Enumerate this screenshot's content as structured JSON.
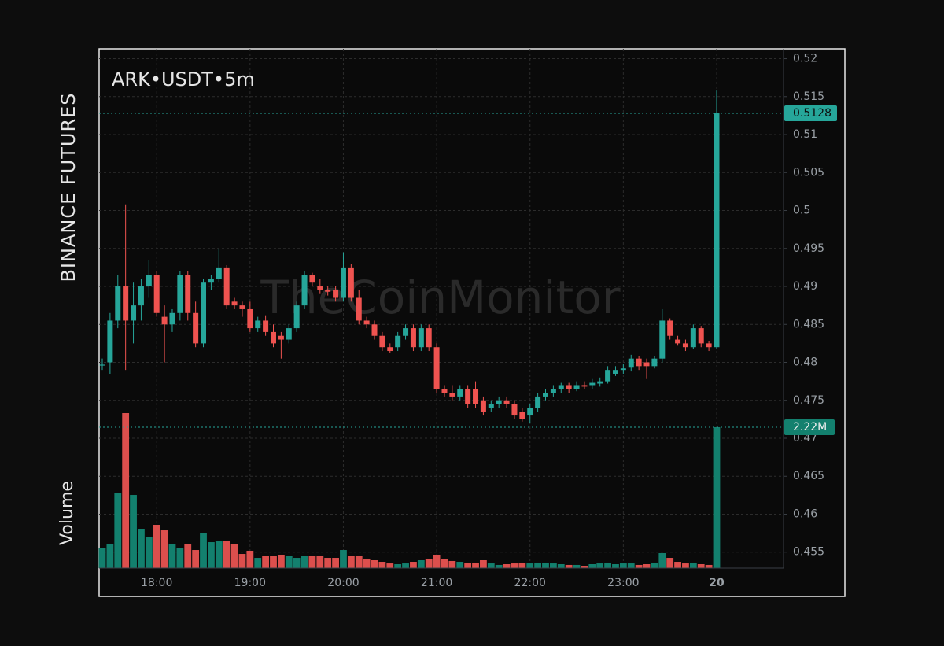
{
  "chart_data": {
    "type": "candlestick",
    "title": "ARK•USDT•5m",
    "exchange": "BINANCE FUTURES",
    "volume_title": "Volume",
    "watermark": "TheCoinMonitor",
    "up_color": "#26a69a",
    "down_color": "#ef5350",
    "volume_up_color": "#13806e",
    "volume_down_color": "#dc4f4d",
    "grid": true,
    "categories": [
      null,
      null,
      null,
      null,
      null,
      null,
      null,
      "18:00",
      null,
      null,
      null,
      null,
      null,
      null,
      null,
      null,
      null,
      null,
      null,
      "19:00",
      null,
      null,
      null,
      null,
      null,
      null,
      null,
      null,
      null,
      null,
      null,
      "20:00",
      null,
      null,
      null,
      null,
      null,
      null,
      null,
      null,
      null,
      null,
      null,
      "21:00",
      null,
      null,
      null,
      null,
      null,
      null,
      null,
      null,
      null,
      null,
      null,
      "22:00",
      null,
      null,
      null,
      null,
      null,
      null,
      null,
      null,
      null,
      null,
      null,
      "23:00",
      null,
      null,
      null,
      null,
      null,
      null,
      null,
      null,
      null,
      null,
      null,
      "20"
    ],
    "candles": [
      [
        0.4797,
        0.4805,
        0.479,
        0.4797
      ],
      [
        0.48,
        0.4865,
        0.4785,
        0.4855
      ],
      [
        0.4855,
        0.4915,
        0.4845,
        0.49
      ],
      [
        0.49,
        0.5008,
        0.479,
        0.4855
      ],
      [
        0.4855,
        0.4905,
        0.4825,
        0.4875
      ],
      [
        0.4875,
        0.491,
        0.4855,
        0.49
      ],
      [
        0.49,
        0.4935,
        0.4885,
        0.4915
      ],
      [
        0.4915,
        0.492,
        0.486,
        0.4865
      ],
      [
        0.486,
        0.4875,
        0.48,
        0.485
      ],
      [
        0.485,
        0.487,
        0.484,
        0.4865
      ],
      [
        0.4865,
        0.492,
        0.4855,
        0.4915
      ],
      [
        0.4915,
        0.492,
        0.4855,
        0.4865
      ],
      [
        0.4865,
        0.488,
        0.482,
        0.4825
      ],
      [
        0.4825,
        0.491,
        0.482,
        0.4905
      ],
      [
        0.4905,
        0.4915,
        0.4895,
        0.491
      ],
      [
        0.491,
        0.495,
        0.4905,
        0.4925
      ],
      [
        0.4925,
        0.4928,
        0.487,
        0.4875
      ],
      [
        0.488,
        0.4885,
        0.487,
        0.4875
      ],
      [
        0.4875,
        0.488,
        0.486,
        0.487
      ],
      [
        0.487,
        0.488,
        0.484,
        0.4845
      ],
      [
        0.4845,
        0.486,
        0.484,
        0.4855
      ],
      [
        0.4855,
        0.4862,
        0.4835,
        0.484
      ],
      [
        0.484,
        0.485,
        0.482,
        0.4825
      ],
      [
        0.4835,
        0.484,
        0.4805,
        0.483
      ],
      [
        0.483,
        0.485,
        0.4825,
        0.4845
      ],
      [
        0.4845,
        0.488,
        0.484,
        0.4875
      ],
      [
        0.4875,
        0.492,
        0.487,
        0.4915
      ],
      [
        0.4915,
        0.4918,
        0.49,
        0.4905
      ],
      [
        0.49,
        0.491,
        0.489,
        0.4895
      ],
      [
        0.4895,
        0.49,
        0.4888,
        0.4893
      ],
      [
        0.4895,
        0.49,
        0.488,
        0.4885
      ],
      [
        0.4885,
        0.4945,
        0.488,
        0.4925
      ],
      [
        0.4925,
        0.493,
        0.488,
        0.4885
      ],
      [
        0.4885,
        0.4895,
        0.485,
        0.4855
      ],
      [
        0.4855,
        0.486,
        0.4845,
        0.485
      ],
      [
        0.485,
        0.4855,
        0.483,
        0.4835
      ],
      [
        0.4835,
        0.484,
        0.4815,
        0.482
      ],
      [
        0.482,
        0.4825,
        0.4812,
        0.4815
      ],
      [
        0.482,
        0.484,
        0.4815,
        0.4835
      ],
      [
        0.4835,
        0.485,
        0.483,
        0.4845
      ],
      [
        0.4845,
        0.485,
        0.4815,
        0.482
      ],
      [
        0.482,
        0.485,
        0.4815,
        0.4845
      ],
      [
        0.4845,
        0.485,
        0.4815,
        0.482
      ],
      [
        0.482,
        0.4825,
        0.476,
        0.4765
      ],
      [
        0.4765,
        0.477,
        0.4755,
        0.476
      ],
      [
        0.476,
        0.477,
        0.475,
        0.4755
      ],
      [
        0.4755,
        0.477,
        0.475,
        0.4765
      ],
      [
        0.4765,
        0.477,
        0.474,
        0.4745
      ],
      [
        0.4765,
        0.4775,
        0.474,
        0.4745
      ],
      [
        0.475,
        0.4755,
        0.473,
        0.4735
      ],
      [
        0.474,
        0.475,
        0.4735,
        0.4745
      ],
      [
        0.4745,
        0.4755,
        0.474,
        0.475
      ],
      [
        0.475,
        0.4755,
        0.474,
        0.4745
      ],
      [
        0.4745,
        0.475,
        0.4725,
        0.473
      ],
      [
        0.4735,
        0.474,
        0.4722,
        0.4725
      ],
      [
        0.473,
        0.4745,
        0.472,
        0.474
      ],
      [
        0.474,
        0.476,
        0.4735,
        0.4755
      ],
      [
        0.4755,
        0.4765,
        0.475,
        0.476
      ],
      [
        0.476,
        0.477,
        0.4755,
        0.4765
      ],
      [
        0.4765,
        0.4773,
        0.476,
        0.477
      ],
      [
        0.477,
        0.4773,
        0.476,
        0.4765
      ],
      [
        0.4765,
        0.4775,
        0.4762,
        0.477
      ],
      [
        0.477,
        0.4775,
        0.4765,
        0.4768
      ],
      [
        0.477,
        0.4778,
        0.4765,
        0.4773
      ],
      [
        0.4772,
        0.478,
        0.4768,
        0.4775
      ],
      [
        0.4775,
        0.4795,
        0.4772,
        0.479
      ],
      [
        0.4785,
        0.4795,
        0.4782,
        0.479
      ],
      [
        0.479,
        0.4798,
        0.4785,
        0.4792
      ],
      [
        0.4793,
        0.481,
        0.4788,
        0.4805
      ],
      [
        0.4805,
        0.4808,
        0.479,
        0.4795
      ],
      [
        0.48,
        0.4805,
        0.4778,
        0.4795
      ],
      [
        0.4795,
        0.4808,
        0.4792,
        0.4805
      ],
      [
        0.4805,
        0.487,
        0.48,
        0.4855
      ],
      [
        0.4855,
        0.4858,
        0.483,
        0.4835
      ],
      [
        0.483,
        0.4835,
        0.4822,
        0.4825
      ],
      [
        0.4825,
        0.483,
        0.4815,
        0.482
      ],
      [
        0.482,
        0.485,
        0.4818,
        0.4845
      ],
      [
        0.4845,
        0.4848,
        0.482,
        0.4825
      ],
      [
        0.4825,
        0.4828,
        0.4815,
        0.482
      ],
      [
        0.482,
        0.5158,
        0.4818,
        0.5128
      ]
    ],
    "volume": {
      "values": [
        310000,
        372000,
        1178000,
        2443000,
        1153000,
        620000,
        496000,
        682000,
        595000,
        372000,
        310000,
        372000,
        285000,
        558000,
        409000,
        434000,
        434000,
        372000,
        223000,
        273000,
        161000,
        186000,
        186000,
        211000,
        186000,
        161000,
        198000,
        186000,
        186000,
        161000,
        161000,
        285000,
        198000,
        186000,
        149000,
        124000,
        99000,
        74000,
        62000,
        74000,
        99000,
        124000,
        149000,
        211000,
        149000,
        112000,
        99000,
        87000,
        87000,
        124000,
        74000,
        50000,
        62000,
        74000,
        87000,
        74000,
        87000,
        87000,
        74000,
        62000,
        50000,
        50000,
        37000,
        62000,
        74000,
        87000,
        62000,
        74000,
        74000,
        50000,
        62000,
        87000,
        236000,
        161000,
        99000,
        74000,
        87000,
        62000,
        50000,
        2220000
      ],
      "last_label": "2.22M",
      "ylim": [
        0,
        2500000
      ]
    },
    "ylim": [
      0.4529,
      0.5213
    ],
    "yticks": [
      0.455,
      0.46,
      0.465,
      0.47,
      0.475,
      0.48,
      0.485,
      0.49,
      0.495,
      0.5,
      0.505,
      0.51,
      0.515,
      0.52
    ]
  }
}
